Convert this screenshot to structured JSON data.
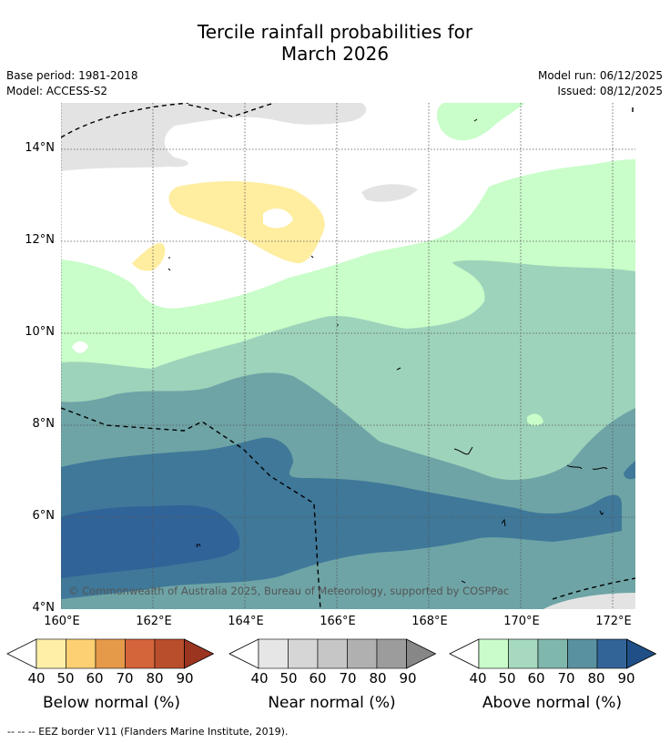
{
  "header": {
    "title_line1": "Tercile rainfall probabilities for",
    "title_line2": "March 2026"
  },
  "meta": {
    "base_period": "Base period: 1981-2018",
    "model": "Model: ACCESS-S2",
    "model_run": "Model run: 06/12/2025",
    "issued": "Issued: 08/12/2025"
  },
  "map": {
    "lat_labels": [
      "14°N",
      "12°N",
      "10°N",
      "8°N",
      "6°N",
      "4°N"
    ],
    "lon_labels": [
      "160°E",
      "162°E",
      "164°E",
      "166°E",
      "168°E",
      "170°E",
      "172°E"
    ],
    "copyright": "© Commonwealth of Australia 2025, Bureau of Meteorology, supported by COSPPac",
    "colors": {
      "above40": "#c9fdc9",
      "above50": "#9ed3bb",
      "above60": "#6ea4a6",
      "above70": "#3f7899",
      "above80": "#306398",
      "below40": "#ffeda0",
      "near40": "#e3e3e3"
    }
  },
  "colorbars": [
    {
      "title": "Below normal (%)",
      "ticks": [
        "40",
        "50",
        "60",
        "70",
        "80",
        "90"
      ],
      "colors": [
        "#fff0a8",
        "#fed074",
        "#e59a4a",
        "#d4643a",
        "#b94e2d",
        "#9c3520"
      ]
    },
    {
      "title": "Near normal (%)",
      "ticks": [
        "40",
        "50",
        "60",
        "70",
        "80",
        "90"
      ],
      "colors": [
        "#e6e6e6",
        "#d6d6d6",
        "#c6c6c6",
        "#b0b0b0",
        "#9c9c9c",
        "#878787"
      ]
    },
    {
      "title": "Above normal (%)",
      "ticks": [
        "40",
        "50",
        "60",
        "70",
        "80",
        "90"
      ],
      "colors": [
        "#c9fcca",
        "#a6d9be",
        "#80b7ad",
        "#5a91a0",
        "#336498",
        "#1f4f86"
      ]
    }
  ],
  "footer": {
    "legend_text": "-- -- -- EEZ border V11 (Flanders Marine Institute, 2019)."
  }
}
